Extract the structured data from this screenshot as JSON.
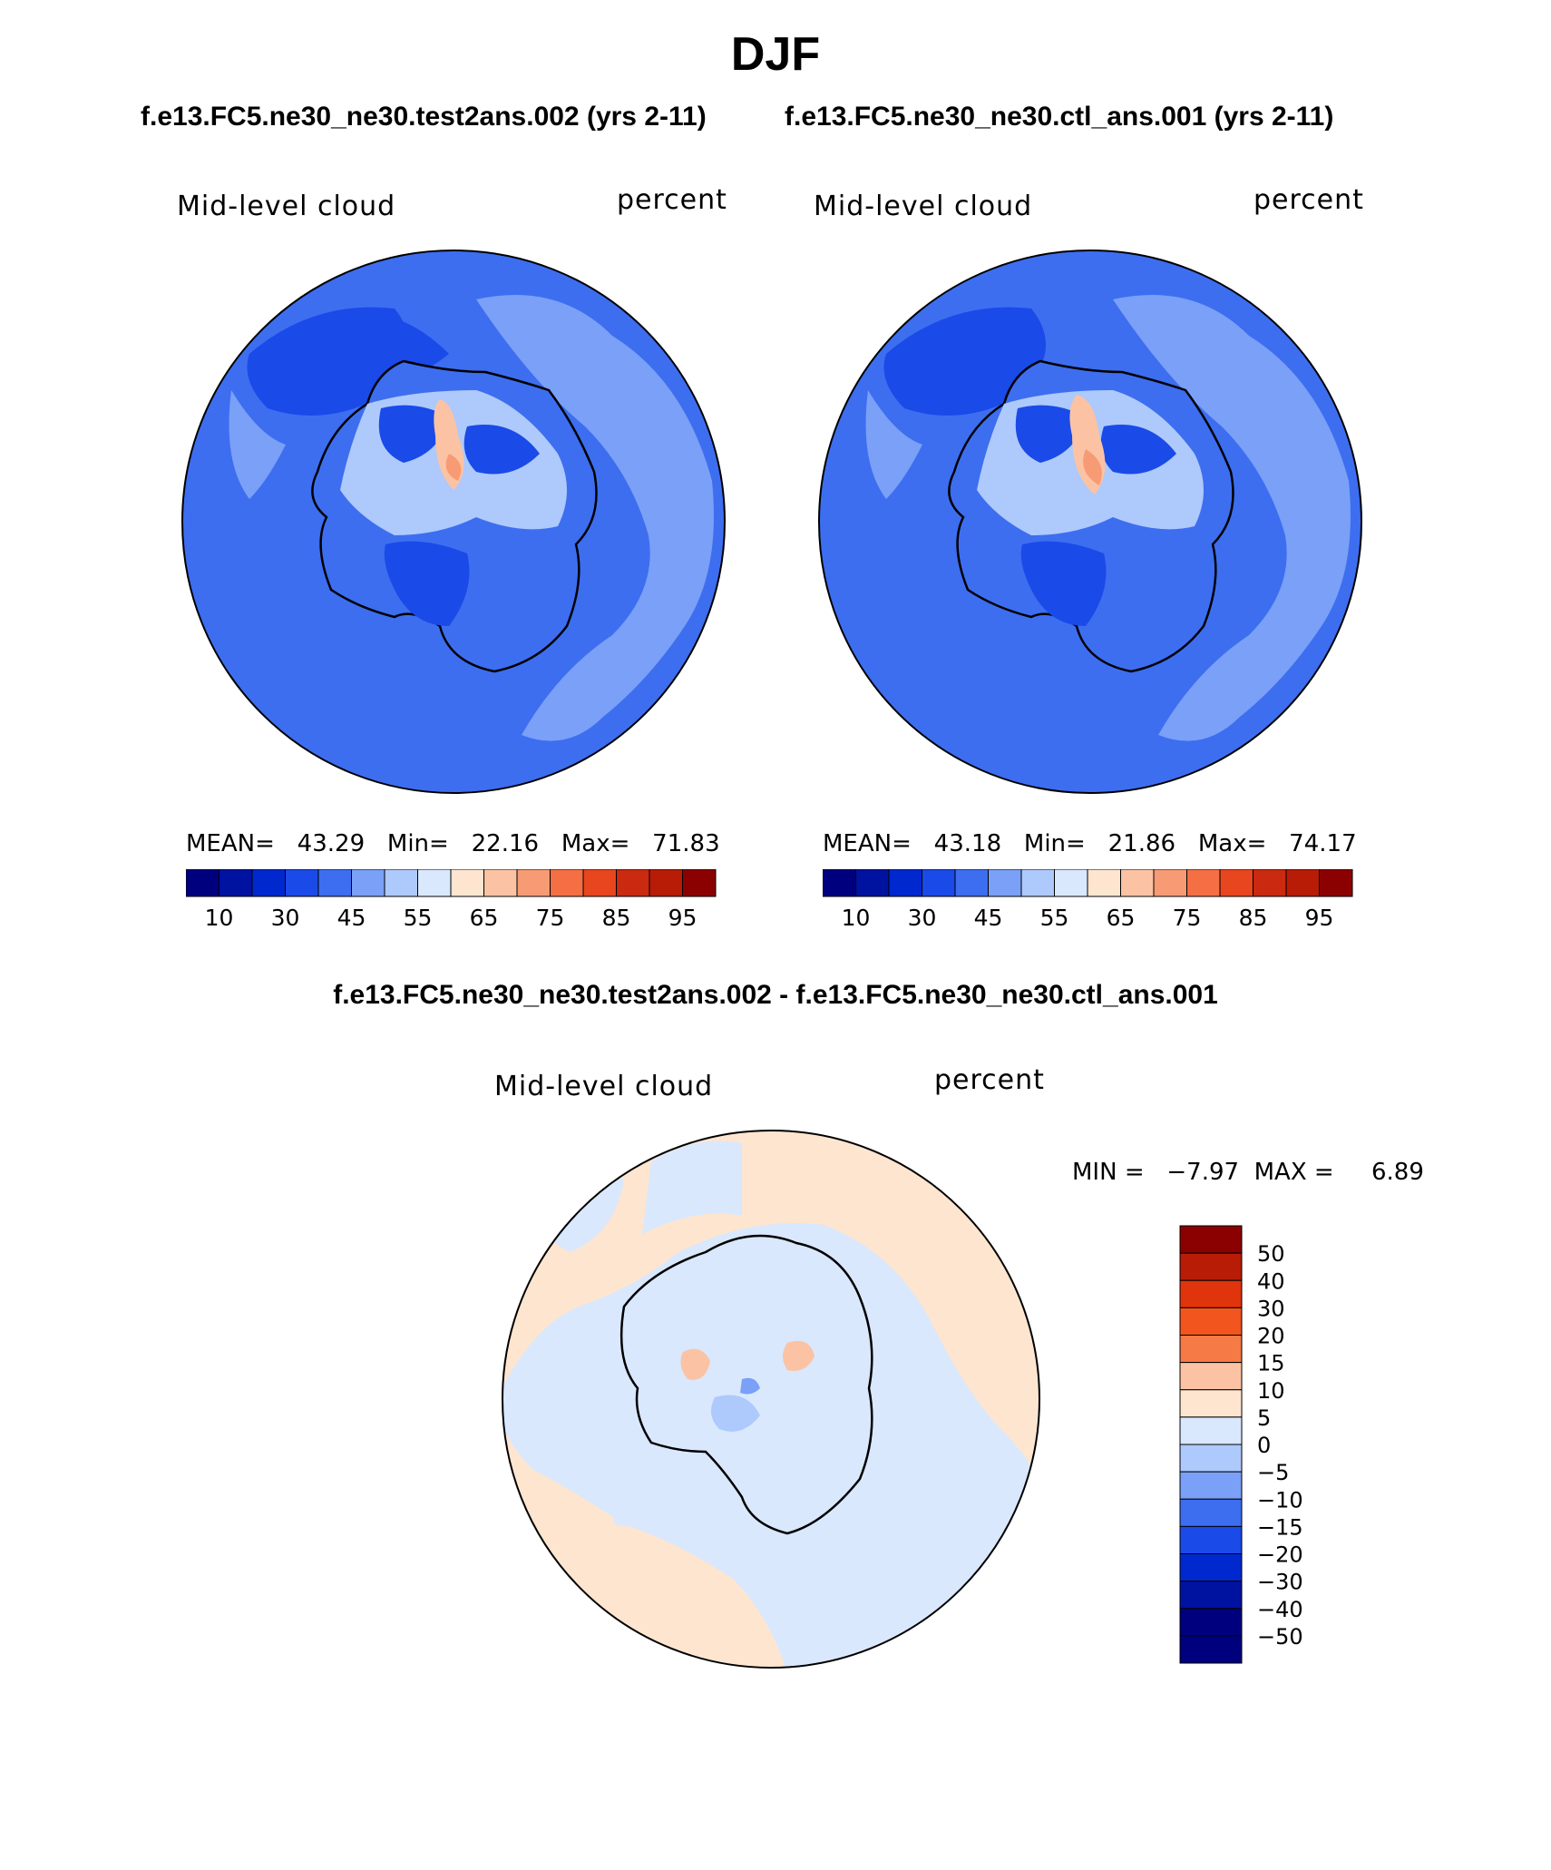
{
  "title": "DJF",
  "case_titles": {
    "left": "f.e13.FC5.ne30_ne30.test2ans.002 (yrs 2-11)",
    "right": "f.e13.FC5.ne30_ne30.ctl_ans.001 (yrs 2-11)"
  },
  "diff_title": "f.e13.FC5.ne30_ne30.test2ans.002 - f.e13.FC5.ne30_ne30.ctl_ans.001",
  "panels": {
    "test": {
      "variable": "Mid-level cloud",
      "units": "percent",
      "stats": "MEAN=   43.29   Min=   22.16   Max=   71.83"
    },
    "control": {
      "variable": "Mid-level cloud",
      "units": "percent",
      "stats": "MEAN=   43.18   Min=   21.86   Max=   74.17"
    },
    "difference": {
      "variable": "Mid-level cloud",
      "units": "percent",
      "stats": "MIN =   −7.97  MAX =     6.89"
    }
  },
  "chart_data": [
    {
      "type": "heatmap",
      "projection": "south polar stereographic",
      "title": "Mid-level cloud",
      "units": "percent",
      "mean": 43.29,
      "min": 22.16,
      "max": 71.83,
      "colorbar": {
        "tick_labels": [
          "10",
          "30",
          "45",
          "55",
          "65",
          "75",
          "85",
          "95"
        ],
        "colors": [
          "#00007f",
          "#0012a0",
          "#0028cf",
          "#1a4ae8",
          "#3d6ef0",
          "#7aa0f7",
          "#aec9fb",
          "#d9e8fd",
          "#fde5d0",
          "#fbc3a3",
          "#f79b75",
          "#f56f45",
          "#e8461e",
          "#c92a10",
          "#b81c07",
          "#8b0000"
        ]
      }
    },
    {
      "type": "heatmap",
      "projection": "south polar stereographic",
      "title": "Mid-level cloud",
      "units": "percent",
      "mean": 43.18,
      "min": 21.86,
      "max": 74.17,
      "colorbar": {
        "tick_labels": [
          "10",
          "30",
          "45",
          "55",
          "65",
          "75",
          "85",
          "95"
        ],
        "colors": [
          "#00007f",
          "#0012a0",
          "#0028cf",
          "#1a4ae8",
          "#3d6ef0",
          "#7aa0f7",
          "#aec9fb",
          "#d9e8fd",
          "#fde5d0",
          "#fbc3a3",
          "#f79b75",
          "#f56f45",
          "#e8461e",
          "#c92a10",
          "#b81c07",
          "#8b0000"
        ]
      }
    },
    {
      "type": "heatmap",
      "projection": "south polar stereographic",
      "title": "Mid-level cloud",
      "units": "percent",
      "min": -7.97,
      "max": 6.89,
      "colorbar": {
        "tick_labels": [
          "50",
          "40",
          "30",
          "20",
          "15",
          "10",
          "5",
          "0",
          "−5",
          "−10",
          "−15",
          "−20",
          "−30",
          "−40",
          "−50"
        ],
        "colors": [
          "#8b0000",
          "#b81c07",
          "#e0340c",
          "#f2551e",
          "#f57a45",
          "#fbc3a3",
          "#fde5d0",
          "#d9e8fd",
          "#aec9fb",
          "#7aa0f7",
          "#3d6ef0",
          "#1a4ae8",
          "#0028cf",
          "#0012a0",
          "#00007f",
          "#00007f"
        ]
      }
    }
  ]
}
